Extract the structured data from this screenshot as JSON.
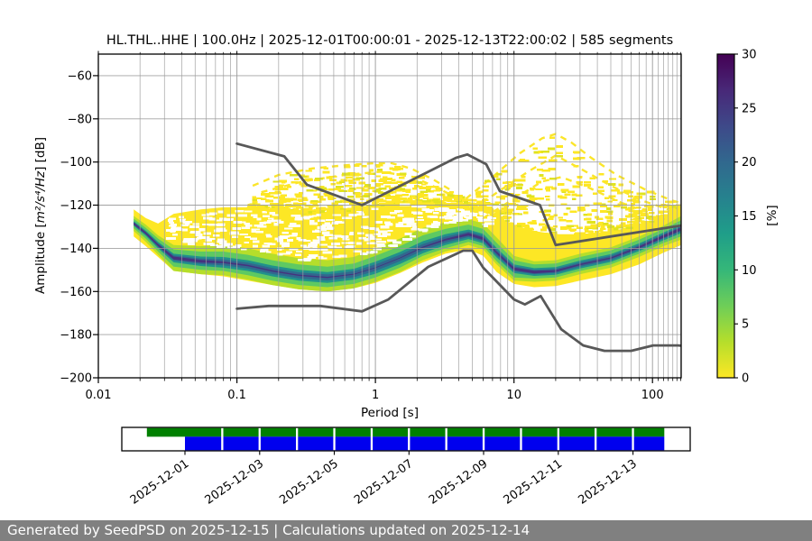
{
  "title": "HL.THL..HHE | 100.0Hz | 2025-12-01T00:00:01 - 2025-12-13T22:00:02 | 585 segments",
  "footer": {
    "text": "Generated by SeedPSD on 2025-12-15 | Calculations updated on 2025-12-14"
  },
  "chart_data": {
    "type": "heatmap",
    "title": "HL.THL..HHE | 100.0Hz | 2025-12-01T00:00:01 - 2025-12-13T22:00:02 | 585 segments",
    "xlabel": "Period [s]",
    "ylabel_parts": {
      "prefix": "Amplitude [",
      "unit": "m²/s⁴/Hz",
      "suffix": "] [dB]"
    },
    "xlim": [
      0.01,
      161
    ],
    "ylim": [
      -200,
      -50
    ],
    "grid": true,
    "x_ticks": {
      "values": [
        0.01,
        0.1,
        1,
        10,
        100
      ],
      "labels": [
        "0.01",
        "0.1",
        "1",
        "10",
        "100"
      ]
    },
    "y_ticks": [
      -60,
      -80,
      -100,
      -120,
      -140,
      -160,
      -180,
      -200
    ],
    "colorbar": {
      "label": "[%]",
      "min": 0,
      "max": 30,
      "ticks": [
        0,
        5,
        10,
        15,
        20,
        25,
        30
      ],
      "stops": [
        "#fde725",
        "#b5de2b",
        "#6ece58",
        "#35b779",
        "#1f9e89",
        "#26828e",
        "#31688e",
        "#3e4989",
        "#482878",
        "#440154"
      ]
    },
    "noise_models": {
      "color": "#585858",
      "nhnm": [
        [
          0.1,
          -91.5
        ],
        [
          0.22,
          -97.4
        ],
        [
          0.32,
          -110.5
        ],
        [
          0.8,
          -120.0
        ],
        [
          3.8,
          -98.1
        ],
        [
          4.6,
          -96.5
        ],
        [
          6.3,
          -101.0
        ],
        [
          7.9,
          -113.5
        ],
        [
          15.4,
          -120.0
        ],
        [
          20.0,
          -138.5
        ],
        [
          354.8,
          -126.0
        ]
      ],
      "nlnm": [
        [
          0.1,
          -168.0
        ],
        [
          0.17,
          -166.7
        ],
        [
          0.4,
          -166.7
        ],
        [
          0.8,
          -169.2
        ],
        [
          1.24,
          -163.7
        ],
        [
          2.4,
          -148.6
        ],
        [
          4.3,
          -141.1
        ],
        [
          5.0,
          -141.1
        ],
        [
          6.0,
          -149.0
        ],
        [
          10.0,
          -163.7
        ],
        [
          12.0,
          -166.0
        ],
        [
          15.6,
          -162.1
        ],
        [
          21.9,
          -177.5
        ],
        [
          31.6,
          -185.0
        ],
        [
          45.0,
          -187.5
        ],
        [
          70.0,
          -187.5
        ],
        [
          101.0,
          -185.0
        ],
        [
          154.0,
          -185.0
        ],
        [
          328.0,
          -187.5
        ]
      ]
    },
    "ppsd": {
      "periods": [
        0.018,
        0.022,
        0.027,
        0.035,
        0.055,
        0.08,
        0.12,
        0.18,
        0.28,
        0.45,
        0.7,
        1.0,
        1.5,
        2.2,
        3.2,
        4.7,
        6.0,
        7.5,
        10,
        14,
        20,
        30,
        50,
        80,
        120,
        161
      ],
      "mode_db": [
        -128.5,
        -133,
        -138.5,
        -144.5,
        -146,
        -146.5,
        -148,
        -150.5,
        -152.5,
        -153.5,
        -152,
        -149,
        -144.5,
        -139.5,
        -136,
        -133.5,
        -135.5,
        -142,
        -149.5,
        -151,
        -150.5,
        -147.5,
        -144.5,
        -139.5,
        -134.5,
        -131
      ],
      "bands": [
        {
          "name": "pct-0-3",
          "color": "#fde725",
          "top": [
            -122,
            -126,
            -128.5,
            -124,
            -122,
            -121,
            -121,
            -122,
            -123,
            -123,
            -122,
            -120,
            -118,
            -118,
            -120,
            -121,
            -122,
            -125,
            -129,
            -132,
            -133.5,
            -133.5,
            -132,
            -129.5,
            -126,
            -121.5
          ],
          "bot": [
            -134.5,
            -139,
            -144,
            -150.5,
            -152,
            -153,
            -155,
            -157,
            -159,
            -160,
            -158.5,
            -156,
            -151.5,
            -146.5,
            -142.5,
            -140.5,
            -143.5,
            -151,
            -156.5,
            -158,
            -157.5,
            -155,
            -152,
            -147.5,
            -142,
            -138.5
          ]
        },
        {
          "name": "pct-3-7",
          "color": "#b5de2b",
          "top": [
            -125,
            -129,
            -134,
            -138.5,
            -139,
            -138.5,
            -140,
            -142.5,
            -144.5,
            -145.5,
            -144,
            -140,
            -135.5,
            -130.5,
            -128,
            -126.5,
            -128.5,
            -135,
            -143.5,
            -146,
            -145.5,
            -142.5,
            -139.5,
            -134.5,
            -129.5,
            -125
          ],
          "bot": [
            -132,
            -137,
            -143,
            -150.5,
            -152,
            -152.5,
            -154.5,
            -157,
            -159,
            -160,
            -158.5,
            -155.5,
            -151,
            -145.5,
            -141.5,
            -138.5,
            -140.5,
            -147.5,
            -155,
            -155.5,
            -155,
            -152,
            -149,
            -144,
            -139,
            -136
          ]
        },
        {
          "name": "pct-7-12",
          "color": "#5ec962",
          "top": [
            -126.3,
            -130.5,
            -135.5,
            -140.5,
            -141.5,
            -141.5,
            -143,
            -145.5,
            -147.5,
            -148.5,
            -147,
            -143.5,
            -139,
            -134,
            -131,
            -129,
            -131,
            -137.5,
            -145.5,
            -147.5,
            -147,
            -144,
            -141,
            -136,
            -131,
            -127
          ],
          "bot": [
            -130.7,
            -135.5,
            -141.5,
            -148.5,
            -150,
            -150.5,
            -152.5,
            -155,
            -157,
            -158,
            -156.5,
            -153.5,
            -149,
            -143.5,
            -140,
            -137,
            -139,
            -146,
            -153.5,
            -154,
            -153.5,
            -150.5,
            -147.5,
            -142.5,
            -137.5,
            -134.5
          ]
        },
        {
          "name": "pct-12-18",
          "color": "#21918c",
          "top": [
            -127.4,
            -131.8,
            -137,
            -142.5,
            -143.8,
            -144,
            -145.5,
            -148,
            -150,
            -151,
            -149.5,
            -146.2,
            -141.7,
            -136.7,
            -133.5,
            -131.3,
            -133.3,
            -139.8,
            -147.5,
            -149.2,
            -148.7,
            -145.7,
            -142.7,
            -137.7,
            -132.7,
            -129
          ],
          "bot": [
            -129.6,
            -134.2,
            -140,
            -146.5,
            -148.2,
            -149,
            -150.5,
            -153,
            -155,
            -156,
            -154.5,
            -151.8,
            -147.3,
            -142.3,
            -138.5,
            -135.7,
            -137.7,
            -144.2,
            -151.5,
            -152.8,
            -152.3,
            -149.3,
            -146.3,
            -141.3,
            -136.3,
            -133
          ]
        },
        {
          "name": "pct-18-24",
          "color": "#31688e",
          "top": [
            -127.9,
            -132.4,
            -137.7,
            -143.3,
            -144.7,
            -145.1,
            -146.6,
            -149.1,
            -151.1,
            -152.1,
            -150.6,
            -147.5,
            -143,
            -138,
            -134.6,
            -132.2,
            -134.2,
            -140.7,
            -148.3,
            -150,
            -149.5,
            -146.5,
            -143.5,
            -138.5,
            -133.5,
            -129.8
          ],
          "bot": [
            -129.1,
            -133.6,
            -139.3,
            -145.7,
            -147.3,
            -147.9,
            -149.4,
            -151.9,
            -153.9,
            -154.9,
            -153.4,
            -150.5,
            -146,
            -141,
            -137.4,
            -134.8,
            -136.8,
            -143.3,
            -150.7,
            -152,
            -151.5,
            -148.5,
            -145.5,
            -140.5,
            -135.5,
            -132.2
          ]
        },
        {
          "name": "pct-24-30",
          "color": "#46327e",
          "top": [
            -128,
            -132.5,
            -138,
            -143.8,
            -145.4,
            -146.1,
            -147.7,
            -150.2,
            -152.2,
            -153.2,
            -151.8,
            -148.8,
            -144.3,
            -139.2,
            -135.6,
            -132.9,
            -134.9,
            -141.5,
            -148.9,
            -150.4,
            -150.1,
            -147.2,
            -144.2,
            -139.1,
            -133.9,
            -130.3
          ],
          "bot": [
            -129,
            -133.5,
            -139,
            -145.2,
            -146.6,
            -146.9,
            -148.3,
            -150.8,
            -152.8,
            -153.8,
            -152.2,
            -149.2,
            -144.7,
            -139.8,
            -136.4,
            -134.1,
            -136.1,
            -142.5,
            -150.1,
            -151.6,
            -150.9,
            -147.8,
            -144.8,
            -139.9,
            -135.1,
            -131.7
          ]
        }
      ],
      "sparse_envelope": [
        [
          0.12,
          -117
        ],
        [
          0.18,
          -109
        ],
        [
          0.28,
          -104
        ],
        [
          0.45,
          -102
        ],
        [
          0.7,
          -101
        ],
        [
          1.1,
          -100.5
        ],
        [
          1.6,
          -102
        ],
        [
          2.4,
          -108
        ],
        [
          3.4,
          -113
        ],
        [
          4.5,
          -116
        ],
        [
          6,
          -109
        ],
        [
          9,
          -99
        ],
        [
          14,
          -91
        ],
        [
          20,
          -87
        ],
        [
          28,
          -93
        ],
        [
          40,
          -100
        ],
        [
          60,
          -107
        ],
        [
          90,
          -113
        ],
        [
          125,
          -117
        ],
        [
          161,
          -119
        ]
      ],
      "sparse_arcs": [
        [
          [
            0.13,
            -111
          ],
          [
            0.2,
            -106
          ],
          [
            0.35,
            -103
          ],
          [
            0.6,
            -101.5
          ],
          [
            1.0,
            -100.5
          ],
          [
            1.3,
            -100.5
          ],
          [
            1.8,
            -103
          ],
          [
            2.6,
            -108
          ],
          [
            3.5,
            -113
          ]
        ],
        [
          [
            0.15,
            -114
          ],
          [
            0.3,
            -109
          ],
          [
            0.6,
            -106
          ],
          [
            1.1,
            -104.5
          ],
          [
            1.9,
            -107
          ],
          [
            3.0,
            -113
          ],
          [
            4.0,
            -117
          ]
        ],
        [
          [
            4.5,
            -117
          ],
          [
            7,
            -107
          ],
          [
            11,
            -96
          ],
          [
            16,
            -89
          ],
          [
            20,
            -87
          ],
          [
            26,
            -91
          ],
          [
            36,
            -98
          ],
          [
            55,
            -106
          ],
          [
            90,
            -113
          ],
          [
            140,
            -118
          ],
          [
            161,
            -119
          ]
        ],
        [
          [
            5,
            -122
          ],
          [
            8,
            -113
          ],
          [
            13,
            -104
          ],
          [
            20,
            -97
          ],
          [
            30,
            -103
          ],
          [
            50,
            -111
          ],
          [
            85,
            -118
          ],
          [
            130,
            -122
          ]
        ],
        [
          [
            6,
            -126
          ],
          [
            10,
            -117
          ],
          [
            16,
            -109
          ],
          [
            22,
            -107
          ],
          [
            35,
            -112
          ],
          [
            60,
            -119
          ],
          [
            100,
            -124
          ]
        ]
      ]
    },
    "availability": {
      "green_color": "#008000",
      "blue_color": "#0000ee",
      "green_span_days": [
        -1.02,
        12.84
      ],
      "blue_span_days": [
        0.0,
        12.84
      ],
      "divider_days": [
        1,
        2,
        3,
        4,
        5,
        6,
        7,
        8,
        9,
        10,
        11,
        12
      ],
      "label_days": [
        0,
        2,
        4,
        6,
        8,
        10,
        12
      ],
      "labels": [
        "2025-12-01",
        "2025-12-03",
        "2025-12-05",
        "2025-12-07",
        "2025-12-09",
        "2025-12-11",
        "2025-12-13"
      ]
    }
  }
}
